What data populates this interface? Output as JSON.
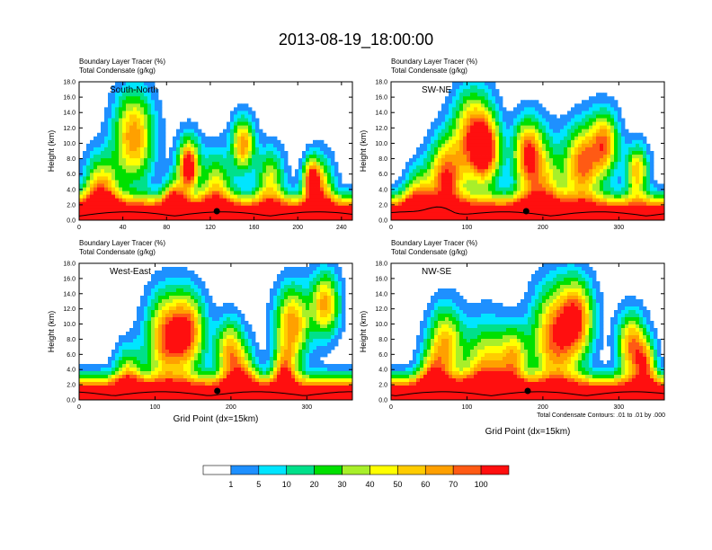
{
  "title": "2013-08-19_18:00:00",
  "chart_data": [
    {
      "type": "heatmap",
      "panel_label": "South-North",
      "var_titles": [
        "Boundary Layer Tracer (%)",
        "Total Condensate (g/kg)"
      ],
      "xlabel": "",
      "ylabel": "Height (km)",
      "xlim": [
        0,
        250
      ],
      "ylim": [
        0,
        18
      ],
      "xticks": [
        "0",
        "40",
        "80",
        "120",
        "160",
        "200",
        "240"
      ],
      "yticks": [
        "0.0",
        "2.0",
        "4.0",
        "6.0",
        "8.0",
        "10.0",
        "12.0",
        "14.0",
        "16.0",
        "18.0"
      ],
      "marker_x": 126
    },
    {
      "type": "heatmap",
      "panel_label": "SW-NE",
      "var_titles": [
        "Boundary Layer Tracer (%)",
        "Total Condensate (g/kg)"
      ],
      "xlabel": "",
      "ylabel": "Height (km)",
      "xlim": [
        0,
        360
      ],
      "ylim": [
        0,
        18
      ],
      "xticks": [
        "0",
        "100",
        "200",
        "300"
      ],
      "yticks": [
        "0.0",
        "2.0",
        "4.0",
        "6.0",
        "8.0",
        "10.0",
        "12.0",
        "14.0",
        "16.0",
        "18.0"
      ],
      "marker_x": 178
    },
    {
      "type": "heatmap",
      "panel_label": "West-East",
      "var_titles": [
        "Boundary Layer Tracer (%)",
        "Total Condensate (g/kg)"
      ],
      "xlabel": "Grid Point (dx=15km)",
      "ylabel": "Height (km)",
      "xlim": [
        0,
        360
      ],
      "ylim": [
        0,
        18
      ],
      "xticks": [
        "0",
        "100",
        "200",
        "300"
      ],
      "yticks": [
        "0.0",
        "2.0",
        "4.0",
        "6.0",
        "8.0",
        "10.0",
        "12.0",
        "14.0",
        "16.0",
        "18.0"
      ],
      "marker_x": 182
    },
    {
      "type": "heatmap",
      "panel_label": "NW-SE",
      "var_titles": [
        "Boundary Layer Tracer (%)",
        "Total Condensate (g/kg)"
      ],
      "xlabel": "Grid Point (dx=15km)",
      "ylabel": "Height (km)",
      "xlim": [
        0,
        360
      ],
      "ylim": [
        0,
        18
      ],
      "xticks": [
        "0",
        "100",
        "200",
        "300"
      ],
      "yticks": [
        "0.0",
        "2.0",
        "4.0",
        "6.0",
        "8.0",
        "10.0",
        "12.0",
        "14.0",
        "16.0",
        "18.0"
      ],
      "marker_x": 180
    }
  ],
  "contour_note": "Total Condensate Contours: .01 to .01 by .000",
  "colorbar": {
    "labels": [
      "1",
      "5",
      "10",
      "20",
      "30",
      "40",
      "50",
      "60",
      "70",
      "100"
    ],
    "colors": [
      "#ffffff",
      "#1e90ff",
      "#00e5ff",
      "#00e08a",
      "#00e000",
      "#a8ef2a",
      "#ffff00",
      "#ffcc00",
      "#ffa000",
      "#ff5a14",
      "#ff0f0f"
    ]
  }
}
